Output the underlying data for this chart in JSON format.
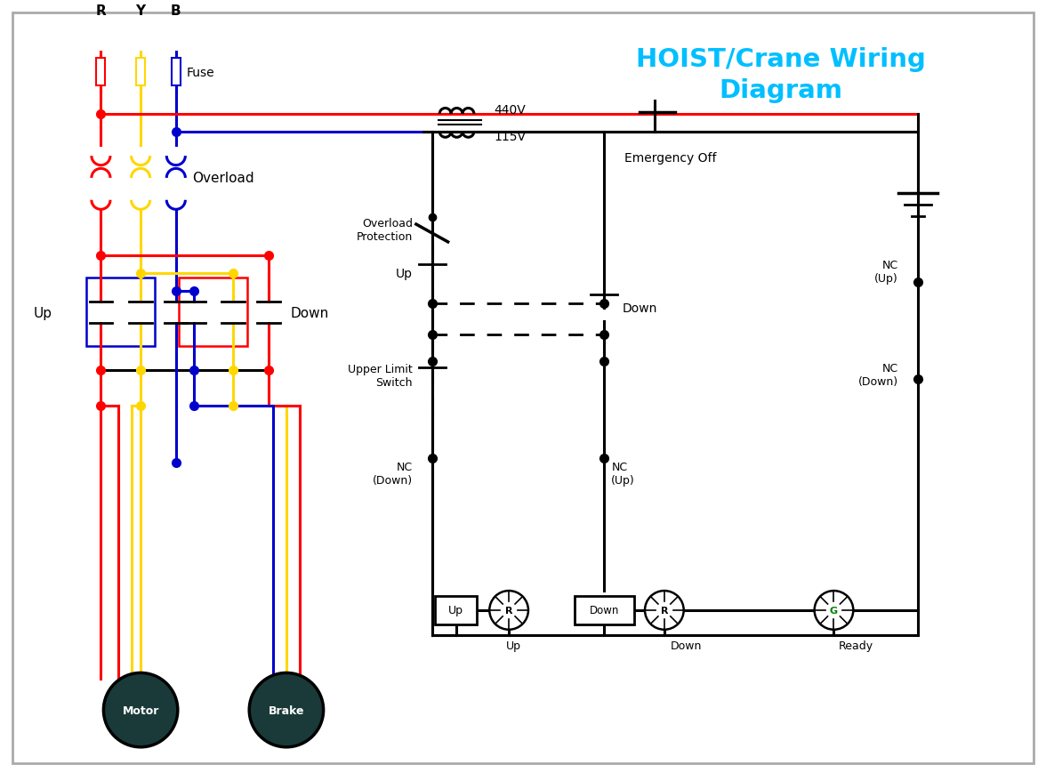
{
  "title": "HOIST/Crane Wiring\nDiagram",
  "title_color": "#00BFFF",
  "bg_color": "#FFFFFF",
  "wire_colors": {
    "red": "#FF0000",
    "yellow": "#FFD700",
    "blue": "#0000CD",
    "black": "#000000"
  },
  "labels": {
    "R": "R",
    "Y": "Y",
    "B": "B",
    "Fuse": "Fuse",
    "Overload": "Overload",
    "Up": "Up",
    "Down": "Down",
    "Motor": "Motor",
    "Brake": "Brake",
    "440V": "440V",
    "115V": "115V",
    "Emergency_Off": "Emergency Off",
    "Overload_Protection": "Overload\nProtection",
    "Upper_Limit_Switch": "Upper Limit\nSwitch",
    "NC_Up_right": "NC\n(Up)",
    "NC_Down_right": "NC\n(Down)",
    "NC_Down_left": "NC\n(Down)",
    "NC_Up_left": "NC\n(Up)",
    "Ready": "Ready"
  },
  "motor_color": "#1a3a3a",
  "motor_text_color": "#FFFFFF"
}
